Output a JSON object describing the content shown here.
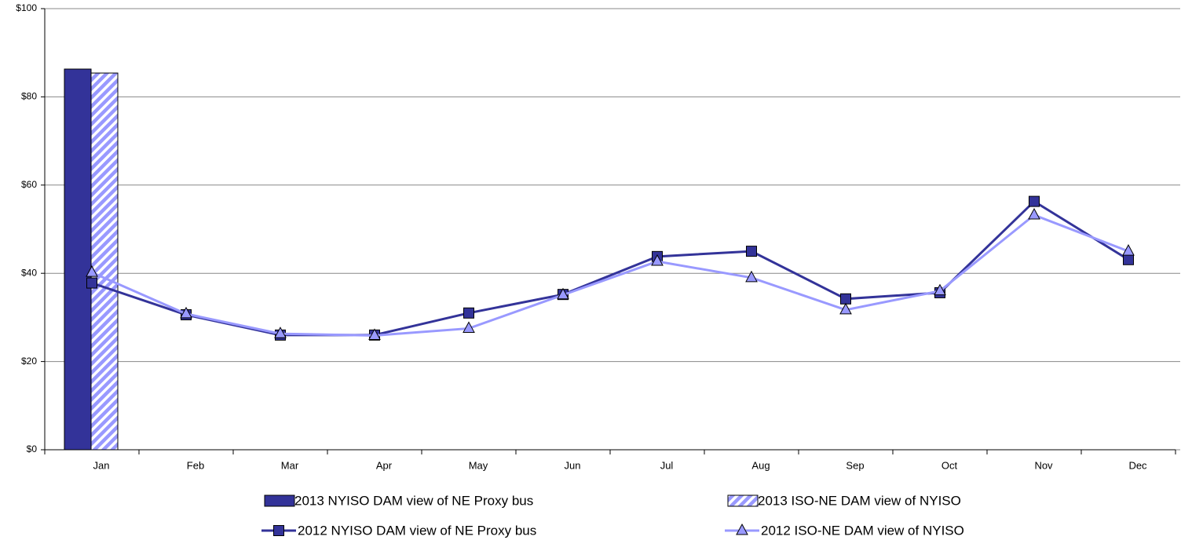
{
  "chart_data": {
    "type": "bar",
    "categories": [
      "Jan",
      "Feb",
      "Mar",
      "Apr",
      "May",
      "Jun",
      "Jul",
      "Aug",
      "Sep",
      "Oct",
      "Nov",
      "Dec"
    ],
    "series": [
      {
        "name": "2013 NYISO DAM view of NE Proxy bus",
        "type": "bar",
        "color": "#333399",
        "hatch": false,
        "values": [
          86.3,
          null,
          null,
          null,
          null,
          null,
          null,
          null,
          null,
          null,
          null,
          null
        ]
      },
      {
        "name": "2013 ISO-NE DAM view of NYISO",
        "type": "bar",
        "color": "#9999ff",
        "hatch": true,
        "values": [
          85.4,
          null,
          null,
          null,
          null,
          null,
          null,
          null,
          null,
          null,
          null,
          null
        ]
      },
      {
        "name": "2012 NYISO DAM view of NE Proxy bus",
        "type": "line",
        "color": "#333399",
        "marker": "square",
        "values": [
          37.8,
          30.6,
          26.0,
          26.0,
          31.0,
          35.2,
          43.8,
          45.0,
          34.2,
          35.6,
          56.3,
          43.1
        ]
      },
      {
        "name": "2012 ISO-NE DAM view of NYISO",
        "type": "line",
        "color": "#9999ff",
        "marker": "triangle",
        "values": [
          40.2,
          30.8,
          26.3,
          25.9,
          27.5,
          35.1,
          42.7,
          39.0,
          31.7,
          36.0,
          53.2,
          45.0
        ]
      }
    ],
    "ylim": [
      0,
      100
    ],
    "yticks": [
      {
        "value": 0,
        "label": "$0"
      },
      {
        "value": 20,
        "label": "$20"
      },
      {
        "value": 40,
        "label": "$40"
      },
      {
        "value": 60,
        "label": "$60"
      },
      {
        "value": 80,
        "label": "$80"
      },
      {
        "value": 100,
        "label": "$100"
      }
    ],
    "grid": true
  }
}
